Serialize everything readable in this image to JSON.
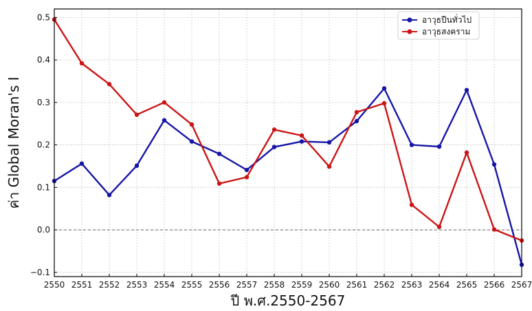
{
  "chart_data": {
    "type": "line",
    "title": "",
    "xlabel": "ปี พ.ศ.2550-2567",
    "ylabel": "ค่า Global Moran's I",
    "x": [
      2550,
      2551,
      2552,
      2553,
      2554,
      2555,
      2556,
      2557,
      2558,
      2559,
      2560,
      2561,
      2562,
      2563,
      2564,
      2565,
      2566,
      2567
    ],
    "xlim": [
      2550,
      2567
    ],
    "ylim": [
      -0.11,
      0.52
    ],
    "yticks": [
      -0.1,
      0.0,
      0.1,
      0.2,
      0.3,
      0.4,
      0.5
    ],
    "ytick_labels": [
      "−0.1",
      "0.0",
      "0.1",
      "0.2",
      "0.3",
      "0.4",
      "0.5"
    ],
    "grid": true,
    "reference_line": 0.0,
    "legend_position": "top-right",
    "series": [
      {
        "name": "อาวุธปืนทั่วไป",
        "color": "#1515a8",
        "values": [
          0.115,
          0.156,
          0.082,
          0.151,
          0.258,
          0.208,
          0.179,
          0.141,
          0.195,
          0.208,
          0.206,
          0.256,
          0.333,
          0.2,
          0.196,
          0.329,
          0.154,
          -0.082
        ]
      },
      {
        "name": "อาวุธสงคราม",
        "color": "#cc1414",
        "values": [
          0.495,
          0.392,
          0.343,
          0.271,
          0.3,
          0.248,
          0.109,
          0.124,
          0.236,
          0.222,
          0.149,
          0.277,
          0.298,
          0.059,
          0.007,
          0.182,
          0.001,
          -0.025
        ]
      }
    ]
  }
}
